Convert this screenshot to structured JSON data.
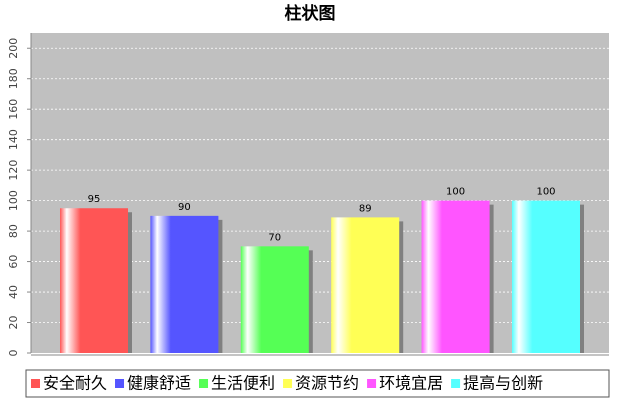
{
  "chart_data": {
    "type": "bar",
    "title": "柱状图",
    "categories": [
      "安全耐久",
      "健康舒适",
      "生活便利",
      "资源节约",
      "环境宜居",
      "提高与创新"
    ],
    "values": [
      95,
      90,
      70,
      89,
      100,
      100
    ],
    "colors": [
      "#ff5555",
      "#5555ff",
      "#55ff55",
      "#ffff55",
      "#ff55ff",
      "#55ffff"
    ],
    "ylim": [
      0,
      210
    ],
    "yticks": [
      0,
      20,
      40,
      60,
      80,
      100,
      120,
      140,
      160,
      180,
      200
    ],
    "grid": true
  }
}
